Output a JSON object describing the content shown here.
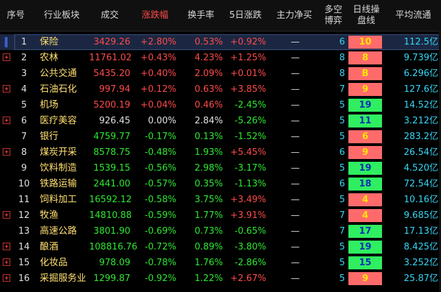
{
  "headers": {
    "idx": "序号",
    "name": "行业板块",
    "volume": "成交",
    "change": "涨跌幅",
    "turnover": "换手率",
    "change5d": "5日涨跌",
    "netflow": "主力净买",
    "bullbear_line1": "多空",
    "bullbear_line2": "博弈",
    "daily_line1": "日线操",
    "daily_line2": "盘线",
    "avgcirc": "平均流通"
  },
  "colors": {
    "up": "#ff4a4a",
    "down": "#2ee830",
    "name": "#ffe070",
    "cyan": "#35d7f5",
    "badge_pink": "#ff6b6b",
    "badge_green": "#2fef60"
  },
  "rows": [
    {
      "idx": "1",
      "name": "保险",
      "volume": "3429.26",
      "change": "+2.80%",
      "turnover": "0.53%",
      "change5d": "+0.92%",
      "netflow": "—",
      "bullbear": "6",
      "daily": "10",
      "badge": "pink",
      "avgcirc": "112.5亿",
      "expand": false,
      "selected": true,
      "dir": "up",
      "dir5": "up"
    },
    {
      "idx": "2",
      "name": "农林",
      "volume": "11761.02",
      "change": "+0.43%",
      "turnover": "4.23%",
      "change5d": "+1.25%",
      "netflow": "—",
      "bullbear": "8",
      "daily": "8",
      "badge": "pink",
      "avgcirc": "9.739亿",
      "expand": true,
      "selected": false,
      "dir": "up",
      "dir5": "up"
    },
    {
      "idx": "3",
      "name": "公共交通",
      "volume": "5435.20",
      "change": "+0.40%",
      "turnover": "2.09%",
      "change5d": "+0.01%",
      "netflow": "—",
      "bullbear": "8",
      "daily": "B",
      "badge": "pink",
      "avgcirc": "6.296亿",
      "expand": false,
      "selected": false,
      "dir": "up",
      "dir5": "up"
    },
    {
      "idx": "4",
      "name": "石油石化",
      "volume": "997.94",
      "change": "+0.12%",
      "turnover": "0.63%",
      "change5d": "+3.85%",
      "netflow": "—",
      "bullbear": "7",
      "daily": "9",
      "badge": "pink",
      "avgcirc": "127.6亿",
      "expand": true,
      "selected": false,
      "dir": "up",
      "dir5": "up"
    },
    {
      "idx": "5",
      "name": "机场",
      "volume": "5200.19",
      "change": "+0.04%",
      "turnover": "0.46%",
      "change5d": "-2.45%",
      "netflow": "—",
      "bullbear": "5",
      "daily": "19",
      "badge": "green",
      "avgcirc": "14.52亿",
      "expand": false,
      "selected": false,
      "dir": "up",
      "dir5": "down"
    },
    {
      "idx": "6",
      "name": "医疗美容",
      "volume": "926.45",
      "change": "0.00%",
      "turnover": "2.84%",
      "change5d": "-5.26%",
      "netflow": "—",
      "bullbear": "5",
      "daily": "11",
      "badge": "green",
      "avgcirc": "3.212亿",
      "expand": true,
      "selected": false,
      "dir": "flat",
      "dir5": "down"
    },
    {
      "idx": "7",
      "name": "银行",
      "volume": "4759.77",
      "change": "-0.17%",
      "turnover": "0.13%",
      "change5d": "-1.52%",
      "netflow": "—",
      "bullbear": "5",
      "daily": "6",
      "badge": "pink",
      "avgcirc": "283.2亿",
      "expand": false,
      "selected": false,
      "dir": "down",
      "dir5": "down"
    },
    {
      "idx": "8",
      "name": "煤炭开采",
      "volume": "8578.75",
      "change": "-0.48%",
      "turnover": "1.93%",
      "change5d": "+5.45%",
      "netflow": "—",
      "bullbear": "6",
      "daily": "9",
      "badge": "pink",
      "avgcirc": "26.54亿",
      "expand": true,
      "selected": false,
      "dir": "down",
      "dir5": "up"
    },
    {
      "idx": "9",
      "name": "饮料制造",
      "volume": "1539.15",
      "change": "-0.56%",
      "turnover": "2.98%",
      "change5d": "-3.17%",
      "netflow": "—",
      "bullbear": "5",
      "daily": "19",
      "badge": "green",
      "avgcirc": "4.520亿",
      "expand": false,
      "selected": false,
      "dir": "down",
      "dir5": "down"
    },
    {
      "idx": "10",
      "name": "铁路运输",
      "volume": "2441.00",
      "change": "-0.57%",
      "turnover": "0.35%",
      "change5d": "-1.13%",
      "netflow": "—",
      "bullbear": "6",
      "daily": "18",
      "badge": "green",
      "avgcirc": "72.54亿",
      "expand": false,
      "selected": false,
      "dir": "down",
      "dir5": "down"
    },
    {
      "idx": "11",
      "name": "饲料加工",
      "volume": "16592.12",
      "change": "-0.58%",
      "turnover": "3.75%",
      "change5d": "+3.49%",
      "netflow": "—",
      "bullbear": "5",
      "daily": "4",
      "badge": "pink",
      "avgcirc": "10.16亿",
      "expand": false,
      "selected": false,
      "dir": "down",
      "dir5": "up"
    },
    {
      "idx": "12",
      "name": "牧渔",
      "volume": "14810.88",
      "change": "-0.59%",
      "turnover": "1.77%",
      "change5d": "+3.91%",
      "netflow": "—",
      "bullbear": "7",
      "daily": "4",
      "badge": "pink",
      "avgcirc": "9.685亿",
      "expand": true,
      "selected": false,
      "dir": "down",
      "dir5": "up"
    },
    {
      "idx": "13",
      "name": "高速公路",
      "volume": "3801.90",
      "change": "-0.69%",
      "turnover": "0.73%",
      "change5d": "-0.65%",
      "netflow": "—",
      "bullbear": "7",
      "daily": "17",
      "badge": "green",
      "avgcirc": "17.13亿",
      "expand": false,
      "selected": false,
      "dir": "down",
      "dir5": "down"
    },
    {
      "idx": "14",
      "name": "酿酒",
      "volume": "108816.76",
      "change": "-0.72%",
      "turnover": "0.89%",
      "change5d": "-3.80%",
      "netflow": "—",
      "bullbear": "5",
      "daily": "19",
      "badge": "green",
      "avgcirc": "8.425亿",
      "expand": true,
      "selected": false,
      "dir": "down",
      "dir5": "down"
    },
    {
      "idx": "15",
      "name": "化妆品",
      "volume": "978.09",
      "change": "-0.78%",
      "turnover": "1.76%",
      "change5d": "-2.86%",
      "netflow": "—",
      "bullbear": "5",
      "daily": "15",
      "badge": "green",
      "avgcirc": "3.252亿",
      "expand": true,
      "selected": false,
      "dir": "down",
      "dir5": "down"
    },
    {
      "idx": "16",
      "name": "采掘服务业",
      "volume": "1299.87",
      "change": "-0.92%",
      "turnover": "1.22%",
      "change5d": "+2.67%",
      "netflow": "—",
      "bullbear": "5",
      "daily": "9",
      "badge": "pink",
      "avgcirc": "25.87亿",
      "expand": true,
      "selected": false,
      "dir": "down",
      "dir5": "up"
    }
  ]
}
